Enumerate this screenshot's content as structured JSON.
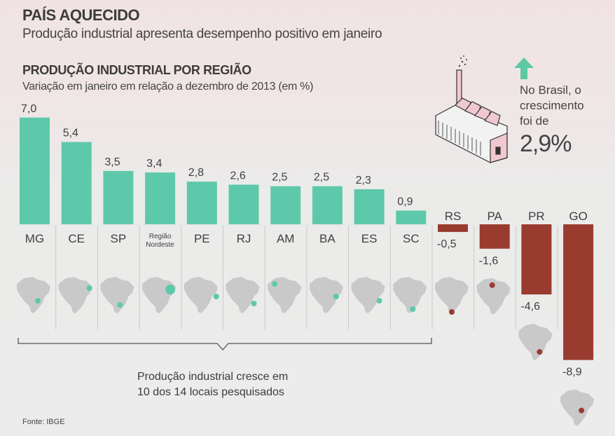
{
  "header": {
    "title": "PAÍS AQUECIDO",
    "subtitle": "Produção industrial apresenta desempenho positivo em janeiro"
  },
  "callout": {
    "text_lines": [
      "No Brasil, o",
      "crescimento",
      "foi de"
    ],
    "value": "2,9%",
    "icons": [
      "arrow-up-icon",
      "factory-icon"
    ],
    "arrow_color": "#5cc8a4"
  },
  "footnote": {
    "lines": [
      "Produção industrial cresce em",
      "10 dos 14 locais pesquisados"
    ]
  },
  "source": "Fonte: IBGE",
  "chart_data": {
    "type": "bar",
    "title": "PRODUÇÃO INDUSTRIAL POR REGIÃO",
    "subtitle": "Variação em janeiro em relação a dezembro de 2013 (em %)",
    "categories": [
      "MG",
      "CE",
      "SP",
      "Região Nordeste",
      "PE",
      "RJ",
      "AM",
      "BA",
      "ES",
      "SC",
      "RS",
      "PA",
      "PR",
      "GO"
    ],
    "values": [
      7.0,
      5.4,
      3.5,
      3.4,
      2.8,
      2.6,
      2.5,
      2.5,
      2.3,
      0.9,
      -0.5,
      -1.6,
      -4.6,
      -8.9
    ],
    "value_labels": [
      "7,0",
      "5,4",
      "3,5",
      "3,4",
      "2,8",
      "2,6",
      "2,5",
      "2,5",
      "2,3",
      "0,9",
      "-0,5",
      "-1,6",
      "-4,6",
      "-8,9"
    ],
    "ylim": [
      -8.9,
      7.0
    ],
    "grid": false,
    "colors": {
      "positive": "#5ec9aa",
      "negative": "#9a3b2f",
      "map": "#c9c9c9"
    }
  }
}
